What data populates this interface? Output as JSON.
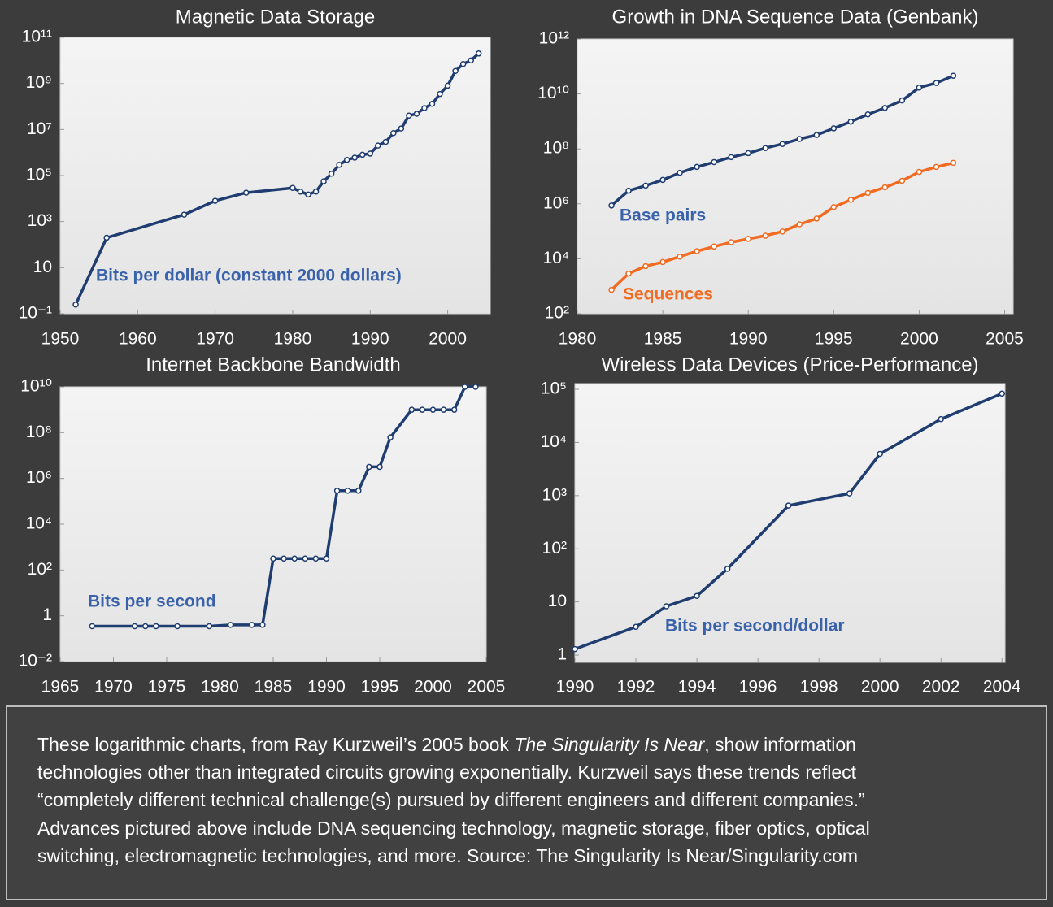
{
  "chart_data": [
    {
      "type": "line",
      "title": "Magnetic Data Storage",
      "log_y": true,
      "color": "#1f3d70",
      "annotation": "Bits per dollar (constant 2000 dollars)",
      "annotation_color": "#3a62aa",
      "x": [
        1952,
        1956,
        1966,
        1970,
        1974,
        1980,
        1981,
        1982,
        1983,
        1984,
        1985,
        1986,
        1987,
        1988,
        1989,
        1990,
        1991,
        1992,
        1993,
        1994,
        1995,
        1996,
        1997,
        1998,
        1999,
        2000,
        2001,
        2002,
        2003,
        2004
      ],
      "values": [
        0.25,
        200,
        2000,
        8000,
        18000,
        29000,
        20000,
        15000,
        20000,
        56000,
        120000,
        290000,
        480000,
        600000,
        800000,
        900000,
        2000000,
        2900000,
        7000000,
        11000000,
        40000000,
        48000000,
        85000000,
        130000000,
        350000000,
        800000000,
        3500000000,
        7000000000,
        10000000000,
        20000000000
      ],
      "xlim": [
        1950,
        2005.5
      ],
      "xticks": [
        1950,
        1960,
        1970,
        1980,
        1990,
        2000
      ],
      "ylim": [
        0.1,
        100000000000
      ],
      "yticks": [
        {
          "value": 0.1,
          "label": "10⁻¹"
        },
        10,
        {
          "value": 1000,
          "label": "10³"
        },
        {
          "value": 100000,
          "label": "10⁵"
        },
        {
          "value": 10000000,
          "label": "10⁷"
        },
        {
          "value": 1000000000,
          "label": "10⁹"
        },
        {
          "value": 100000000000,
          "label": "10¹¹"
        }
      ]
    },
    {
      "type": "line",
      "title": "Growth in DNA Sequence Data (Genbank)",
      "log_y": true,
      "x": [
        1982,
        1983,
        1984,
        1985,
        1986,
        1987,
        1988,
        1989,
        1990,
        1991,
        1992,
        1993,
        1994,
        1995,
        1996,
        1997,
        1998,
        1999,
        2000,
        2001,
        2002
      ],
      "series": [
        {
          "name": "Base pairs",
          "color": "#1f3d70",
          "label_color": "#3a62aa",
          "values": [
            870000,
            3000000,
            4600000,
            7400000,
            13500000,
            22000000,
            33000000,
            50000000,
            70000000,
            107000000,
            150000000,
            230000000,
            320000000,
            560000000,
            980000000,
            1800000000,
            3100000000,
            5800000000,
            17000000000,
            25000000000,
            46000000000
          ]
        },
        {
          "name": "Sequences",
          "color": "#f26b21",
          "label_color": "#f26b21",
          "values": [
            740,
            2900,
            5400,
            7600,
            12000,
            19000,
            28000,
            40000,
            53000,
            69000,
            98000,
            180000,
            290000,
            760000,
            1400000,
            2500000,
            4000000,
            6900000,
            14500000,
            22000000,
            31000000
          ]
        }
      ],
      "xlim": [
        1980,
        2005.5
      ],
      "xticks": [
        1980,
        1985,
        1990,
        1995,
        2000,
        2005
      ],
      "ylim": [
        100,
        1000000000000
      ],
      "yticks": [
        {
          "value": 100,
          "label": "10²"
        },
        {
          "value": 10000,
          "label": "10⁴"
        },
        {
          "value": 1000000,
          "label": "10⁶"
        },
        {
          "value": 100000000,
          "label": "10⁸"
        },
        {
          "value": 10000000000,
          "label": "10¹⁰"
        },
        {
          "value": 1000000000000,
          "label": "10¹²"
        }
      ]
    },
    {
      "type": "line",
      "title": "Internet Backbone Bandwidth",
      "log_y": true,
      "color": "#1f3d70",
      "annotation": "Bits per second",
      "annotation_color": "#3a62aa",
      "x": [
        1968,
        1972,
        1973,
        1974,
        1976,
        1979,
        1981,
        1983,
        1984,
        1985,
        1986,
        1987,
        1988,
        1989,
        1990,
        1991,
        1992,
        1993,
        1994,
        1995,
        1996,
        1998,
        1999,
        2000,
        2001,
        2002,
        2003,
        2004
      ],
      "values": [
        0.35,
        0.35,
        0.35,
        0.35,
        0.35,
        0.35,
        0.4,
        0.4,
        0.4,
        316,
        316,
        316,
        316,
        316,
        316,
        290000,
        290000,
        290000,
        3200000,
        3200000,
        62000000,
        1000000000,
        1000000000,
        1000000000,
        1000000000,
        1000000000,
        10000000000,
        10000000000
      ],
      "xlim": [
        1965,
        2005
      ],
      "xticks": [
        1965,
        1970,
        1975,
        1980,
        1985,
        1990,
        1995,
        2000,
        2005
      ],
      "ylim": [
        0.01,
        10000000000
      ],
      "yticks": [
        {
          "value": 0.01,
          "label": "10⁻²"
        },
        1,
        {
          "value": 100,
          "label": "10²"
        },
        {
          "value": 10000,
          "label": "10⁴"
        },
        {
          "value": 1000000,
          "label": "10⁶"
        },
        {
          "value": 100000000,
          "label": "10⁸"
        },
        {
          "value": 10000000000,
          "label": "10¹⁰"
        }
      ]
    },
    {
      "type": "line",
      "title": "Wireless Data Devices (Price-Performance)",
      "log_y": true,
      "color": "#1f3d70",
      "annotation": "Bits per second/dollar",
      "annotation_color": "#3a62aa",
      "x": [
        1990,
        1992,
        1993,
        1994,
        1995,
        1997,
        1999,
        2000,
        2002,
        2004
      ],
      "values": [
        1.3,
        3.4,
        8.3,
        13,
        42,
        650,
        1100,
        6100,
        27500,
        83000
      ],
      "xlim": [
        1990,
        2004.1
      ],
      "xticks": [
        1990,
        1992,
        1994,
        1996,
        1998,
        2000,
        2002,
        2004
      ],
      "ylim": [
        0.73,
        128000
      ],
      "yticks": [
        1,
        10,
        {
          "value": 100,
          "label": "10²"
        },
        {
          "value": 1000,
          "label": "10³"
        },
        {
          "value": 10000,
          "label": "10⁴"
        },
        {
          "value": 100000,
          "label": "10⁵"
        }
      ]
    }
  ],
  "caption": {
    "line1": [
      "These logarithmic charts, from Ray Kurzweil’s 2005 book ",
      "The Singularity Is Near",
      ", show information"
    ],
    "lines": [
      "technologies other than integrated circuits growing exponentially. Kurzweil says these trends reflect",
      "“completely different technical challenge(s) pursued by different engineers and different companies.”",
      "Advances pictured above include DNA sequencing technology, magnetic storage, fiber optics, optical",
      "switching, electromagnetic technologies, and more. Source: The Singularity Is Near/Singularity.com"
    ]
  }
}
